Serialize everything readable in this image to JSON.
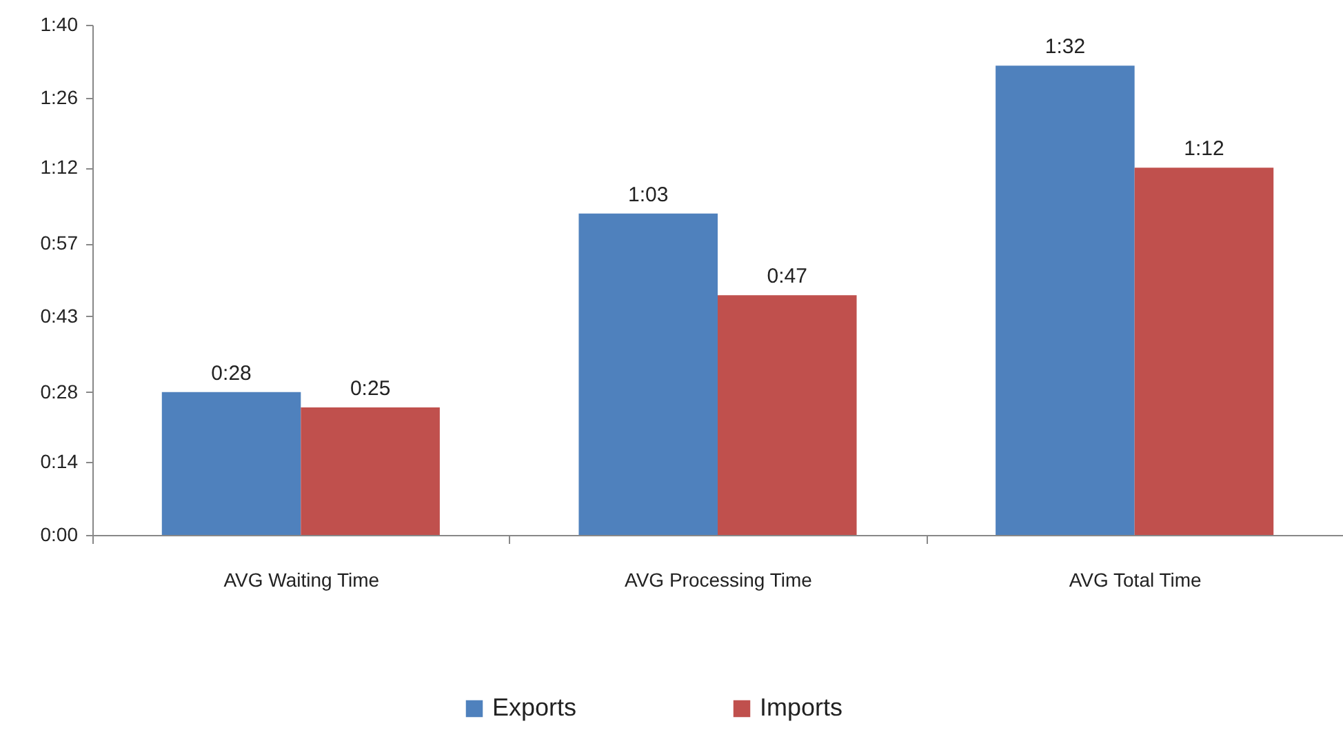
{
  "chart_data": {
    "type": "bar",
    "categories": [
      "AVG Waiting Time",
      "AVG Processing Time",
      "AVG Total Time"
    ],
    "series": [
      {
        "name": "Exports",
        "color": "#4f81bd",
        "values": [
          28,
          63,
          92
        ],
        "value_labels": [
          "0:28",
          "1:03",
          "1:32"
        ]
      },
      {
        "name": "Imports",
        "color": "#c0504d",
        "values": [
          25,
          47,
          72
        ],
        "value_labels": [
          "0:25",
          "0:47",
          "1:12"
        ]
      }
    ],
    "ylim": [
      0,
      100
    ],
    "yticks": [
      {
        "value": 0,
        "label": "0:00"
      },
      {
        "value": 14.2857,
        "label": "0:14"
      },
      {
        "value": 28,
        "label": "0:28"
      },
      {
        "value": 42.8571,
        "label": "0:43"
      },
      {
        "value": 57.1429,
        "label": "0:57"
      },
      {
        "value": 72,
        "label": "1:12"
      },
      {
        "value": 85.7143,
        "label": "1:26"
      },
      {
        "value": 100,
        "label": "1:40"
      }
    ],
    "legend": "bottom"
  }
}
